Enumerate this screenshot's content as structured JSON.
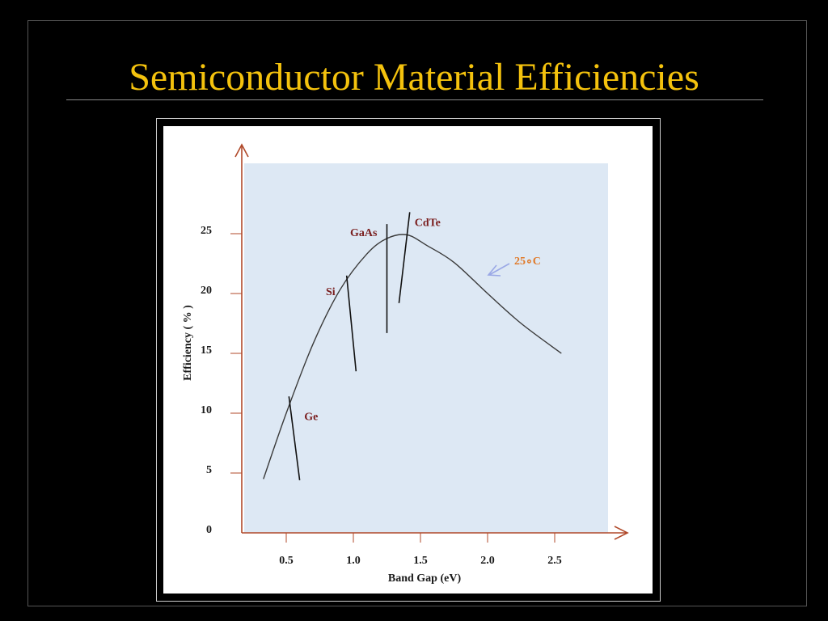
{
  "slide": {
    "title": "Semiconductor Material Efficiencies"
  },
  "colors": {
    "background": "#000000",
    "title": "#f4c20d",
    "axis": "#b0492a",
    "plot_area": "#dde8f4",
    "curve": "#3a3a3a",
    "material_label": "#7a1e1e",
    "temperature_label": "#e07a2a",
    "temperature_arrow": "#9aa8e6"
  },
  "chart_data": {
    "type": "line",
    "title": "",
    "xlabel": "Band Gap (eV)",
    "ylabel": "Efficiency ( % )",
    "x_ticks": [
      "0.5",
      "1.0",
      "1.5",
      "2.0",
      "2.5"
    ],
    "y_ticks": [
      "0",
      "5",
      "10",
      "15",
      "20",
      "25"
    ],
    "xlim": [
      0.18,
      3.0
    ],
    "ylim": [
      0,
      28
    ],
    "grid": false,
    "series": [
      {
        "name": "25∘C",
        "x": [
          0.33,
          0.5,
          0.7,
          0.9,
          1.1,
          1.25,
          1.4,
          1.55,
          1.75,
          2.0,
          2.25,
          2.55
        ],
        "y": [
          4.5,
          10.0,
          15.8,
          20.3,
          23.3,
          24.6,
          24.9,
          24.0,
          22.6,
          20.0,
          17.5,
          15.0
        ]
      }
    ],
    "materials": [
      {
        "label": "Ge",
        "x1": 0.52,
        "y1": 11.4,
        "x2": 0.6,
        "y2": 4.4
      },
      {
        "label": "Si",
        "x1": 0.95,
        "y1": 21.5,
        "x2": 1.02,
        "y2": 13.5
      },
      {
        "label": "GaAs",
        "x1": 1.25,
        "y1": 25.8,
        "x2": 1.25,
        "y2": 16.7
      },
      {
        "label": "CdTe",
        "x1": 1.42,
        "y1": 26.8,
        "x2": 1.34,
        "y2": 19.2
      }
    ],
    "annotations": [
      {
        "text": "25∘C",
        "target_series": "25∘C"
      }
    ]
  }
}
